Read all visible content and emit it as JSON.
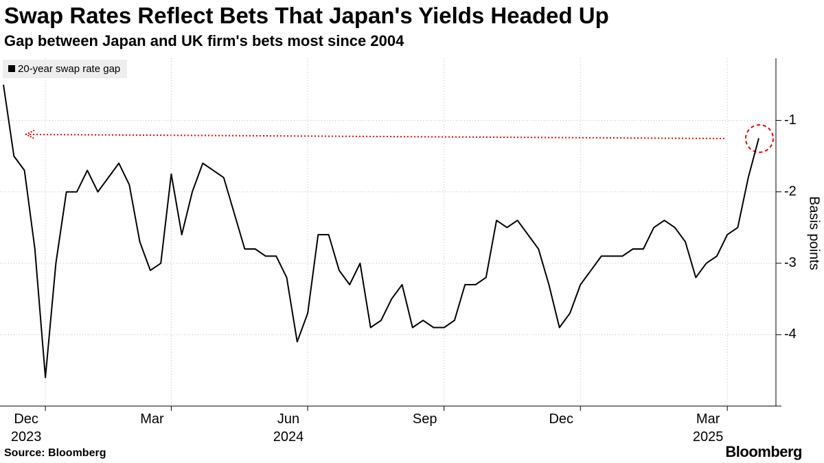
{
  "chart_data": {
    "type": "line",
    "title": "Swap Rates Reflect Bets That Japan's Yields Headed Up",
    "subtitle": "Gap between Japan and UK firm's bets most since 2004",
    "y_label": "Basis points",
    "source": "Source: Bloomberg",
    "brand": "Bloomberg",
    "categories": [
      null,
      null,
      null,
      null,
      "Dec\n2023",
      null,
      null,
      null,
      null,
      null,
      null,
      null,
      null,
      null,
      null,
      null,
      "Mar",
      null,
      null,
      null,
      null,
      null,
      null,
      null,
      null,
      null,
      null,
      null,
      null,
      "Jun\n2024",
      null,
      null,
      null,
      null,
      null,
      null,
      null,
      null,
      null,
      null,
      null,
      null,
      "Sep",
      null,
      null,
      null,
      null,
      null,
      null,
      null,
      null,
      null,
      null,
      null,
      null,
      "Dec",
      null,
      null,
      null,
      null,
      null,
      null,
      null,
      null,
      null,
      null,
      null,
      null,
      null,
      "Mar\n2025",
      null,
      null,
      null
    ],
    "series": [
      {
        "name": "20-year swap rate gap",
        "color": "#000000",
        "values": [
          -0.5,
          -1.5,
          -1.7,
          -2.8,
          -4.6,
          -3.0,
          -2.0,
          -2.0,
          -1.7,
          -2.0,
          -1.8,
          -1.6,
          -1.9,
          -2.7,
          -3.1,
          -3.0,
          -1.75,
          -2.6,
          -2.0,
          -1.6,
          -1.7,
          -1.8,
          -2.3,
          -2.8,
          -2.8,
          -2.9,
          -2.9,
          -3.2,
          -4.1,
          -3.7,
          -2.6,
          -2.6,
          -3.1,
          -3.3,
          -3.0,
          -3.9,
          -3.8,
          -3.5,
          -3.3,
          -3.9,
          -3.8,
          -3.9,
          -3.9,
          -3.8,
          -3.3,
          -3.3,
          -3.2,
          -2.4,
          -2.5,
          -2.4,
          -2.6,
          -2.8,
          -3.3,
          -3.9,
          -3.7,
          -3.3,
          -3.1,
          -2.9,
          -2.9,
          -2.9,
          -2.8,
          -2.8,
          -2.5,
          -2.4,
          -2.5,
          -2.7,
          -3.2,
          -3.0,
          -2.9,
          -2.6,
          -2.5,
          -1.8,
          -1.25
        ]
      }
    ],
    "ylim": [
      -5.0,
      -0.13
    ],
    "yticks": [
      -1,
      -2,
      -3,
      -4
    ],
    "grid": true
  }
}
